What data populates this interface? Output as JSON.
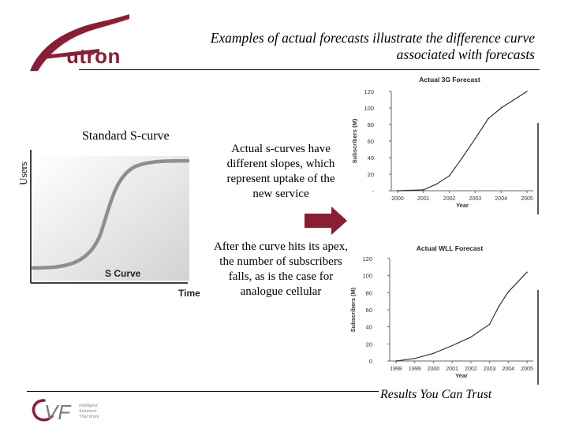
{
  "header": {
    "logo_text": "utron",
    "title_line1": "Examples of actual forecasts illustrate the difference curve",
    "title_line2": "associated with forecasts"
  },
  "scurve": {
    "label": "Standard S-curve",
    "y_axis_label": "Users",
    "x_axis_label": "Time",
    "curve_label": "S Curve"
  },
  "text": {
    "actual_scurves": "Actual s-curves have different slopes, which represent uptake of the new service",
    "after_curve": "After the curve hits its apex, the number of subscribers falls, as is the case for analogue cellular"
  },
  "chart_data": [
    {
      "type": "line",
      "title": "Actual 3G Forecast",
      "xlabel": "Year",
      "ylabel": "Subscribers (M)",
      "categories": [
        "2000",
        "2001",
        "2002",
        "2003",
        "2004",
        "2005"
      ],
      "y_ticks": [
        "120",
        "100",
        "80",
        "60",
        "40",
        "20",
        "-"
      ],
      "ylim": [
        0,
        120
      ],
      "x": [
        2000,
        2000.5,
        2001,
        2001.5,
        2002,
        2002.5,
        2003,
        2003.5,
        2004,
        2004.5,
        2005
      ],
      "values": [
        0,
        0.5,
        1,
        8,
        18,
        40,
        63,
        87,
        100,
        110,
        120
      ]
    },
    {
      "type": "line",
      "title": "Actual WLL Forecast",
      "xlabel": "Year",
      "ylabel": "Subscribers (M)",
      "categories": [
        "1998",
        "1999",
        "2000",
        "2001",
        "2002",
        "2003",
        "2004",
        "2005"
      ],
      "y_ticks": [
        "120",
        "100",
        "80",
        "60",
        "40",
        "20",
        "0"
      ],
      "ylim": [
        0,
        120
      ],
      "x": [
        1998,
        1999,
        2000,
        2001,
        2002,
        2003,
        2003.5,
        2004,
        2005
      ],
      "values": [
        0,
        3,
        9,
        18,
        28,
        43,
        64,
        81,
        104
      ]
    }
  ],
  "footer": {
    "tagline": "Results You Can Trust",
    "logo_text": "VF",
    "logo_small_lines": [
      "Intelligent",
      "Solutions",
      "That Work"
    ]
  }
}
